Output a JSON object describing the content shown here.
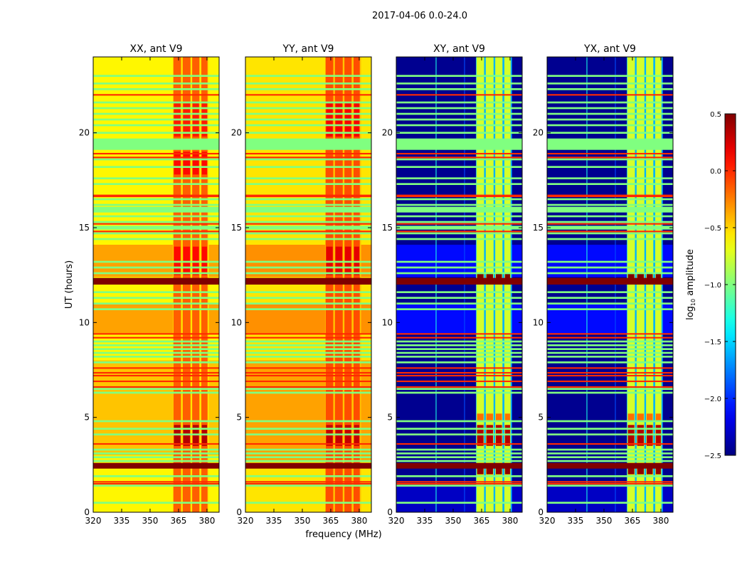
{
  "chart_data": {
    "type": "heatmap",
    "title": "2017-04-06 0.0-24.0",
    "xlabel": "frequency (MHz)",
    "ylabel": "UT (hours)",
    "xlim": [
      320,
      386.4
    ],
    "ylim": [
      0,
      24
    ],
    "xticks": [
      320,
      335,
      350,
      365,
      380
    ],
    "xtick_labels": [
      "320",
      "335",
      "350",
      "365",
      "380"
    ],
    "yticks": [
      0,
      5,
      10,
      15,
      20
    ],
    "ytick_labels": [
      "0",
      "5",
      "10",
      "15",
      "20"
    ],
    "colormap": "jet",
    "colorbar": {
      "label_main": "log",
      "label_sub": "10",
      "label_rest": " amplitude",
      "range": [
        -2.5,
        0.5
      ],
      "ticks": [
        0.5,
        0.0,
        -0.5,
        -1.0,
        -1.5,
        -2.0,
        -2.5
      ],
      "tick_labels": [
        "0.5",
        "0.0",
        "−0.5",
        "−1.0",
        "−1.5",
        "−2.0",
        "−2.5"
      ]
    },
    "band": {
      "range": [
        362,
        381
      ],
      "columns": [
        [
          362.3,
          366.3
        ],
        [
          367.2,
          371.3
        ],
        [
          372.2,
          376.0
        ],
        [
          377.0,
          380.3
        ]
      ]
    },
    "flag_lines": {
      "flagged": [
        23.0,
        22.6,
        22.3,
        21.6,
        21.3,
        21.0,
        20.7,
        20.4,
        20.0,
        18.6,
        18.2,
        17.6,
        17.3,
        16.5,
        16.2,
        15.9,
        15.6,
        15.3,
        15.0,
        14.7,
        14.4,
        13.2,
        12.9,
        12.6,
        11.6,
        11.3,
        11.0,
        10.7,
        9.0,
        8.8,
        8.6,
        8.4,
        8.2,
        7.9,
        6.5,
        6.3,
        4.8,
        4.4,
        4.1,
        3.3,
        3.1,
        2.9,
        2.7,
        1.9,
        1.4,
        0.5
      ],
      "flagged_value": -1.0,
      "flagged_blocks": [
        [
          19.1,
          19.7
        ],
        [
          15.8,
          16.1
        ],
        [
          14.9,
          15.1
        ]
      ],
      "hot": [
        22.0,
        18.9,
        18.7,
        16.7,
        16.65,
        15.2,
        14.8,
        9.4,
        9.2,
        7.6,
        7.35,
        7.2,
        6.9,
        6.6,
        3.6,
        1.6,
        1.5
      ],
      "hot_value": 0.0,
      "saturated_blocks": [
        [
          12.0,
          12.35
        ],
        [
          2.3,
          2.6
        ]
      ],
      "saturated_value": 0.5
    },
    "panels": [
      {
        "title": "XX, ant V9",
        "base": -0.6,
        "gap": -0.55,
        "band_value": -0.15,
        "regions": [
          {
            "t": [
              12.4,
              14.1
            ],
            "v": -0.35
          },
          {
            "t": [
              9.4,
              11.0
            ],
            "v": -0.35
          },
          {
            "t": [
              3.0,
              8.0
            ],
            "v": -0.45
          }
        ],
        "hot_spots": [
          {
            "t": [
              3.5,
              4.6
            ],
            "v": 0.35
          },
          {
            "t": [
              12.5,
              14.0
            ],
            "v": 0.1
          },
          {
            "t": [
              19.8,
              21.6
            ],
            "v": 0.05
          },
          {
            "t": [
              17.8,
              19.0
            ],
            "v": 0.1
          }
        ],
        "vlines": []
      },
      {
        "title": "YY, ant V9",
        "base": -0.55,
        "gap": -0.45,
        "band_value": -0.1,
        "regions": [
          {
            "t": [
              12.4,
              14.1
            ],
            "v": -0.3
          },
          {
            "t": [
              9.4,
              11.0
            ],
            "v": -0.3
          },
          {
            "t": [
              2.7,
              8.0
            ],
            "v": -0.35
          }
        ],
        "hot_spots": [
          {
            "t": [
              3.5,
              4.6
            ],
            "v": 0.3
          },
          {
            "t": [
              12.5,
              14.0
            ],
            "v": 0.2
          },
          {
            "t": [
              19.8,
              21.6
            ],
            "v": 0.15
          }
        ],
        "vlines": []
      },
      {
        "title": "XY, ant V9",
        "base": -2.45,
        "gap": -1.6,
        "band_value": -0.75,
        "regions": [
          {
            "t": [
              12.4,
              14.1
            ],
            "v": -2.1
          },
          {
            "t": [
              9.4,
              11.0
            ],
            "v": -2.1
          },
          {
            "t": [
              0,
              1.4
            ],
            "v": -2.3
          }
        ],
        "hot_spots": [
          {
            "t": [
              3.5,
              4.6
            ],
            "v": 0.35
          },
          {
            "t": [
              12.1,
              12.6
            ],
            "v": 0.5
          },
          {
            "t": [
              4.8,
              5.2
            ],
            "v": -0.2
          },
          {
            "t": [
              2.0,
              2.4
            ],
            "v": 0.45
          }
        ],
        "vlines": [
          {
            "f": 341,
            "v": -1.3
          },
          {
            "f": 356,
            "v": -1.9
          }
        ]
      },
      {
        "title": "YX, ant V9",
        "base": -2.45,
        "gap": -1.6,
        "band_value": -0.75,
        "regions": [
          {
            "t": [
              12.4,
              14.1
            ],
            "v": -2.1
          },
          {
            "t": [
              9.4,
              11.0
            ],
            "v": -2.1
          },
          {
            "t": [
              0,
              1.4
            ],
            "v": -2.3
          }
        ],
        "hot_spots": [
          {
            "t": [
              3.5,
              4.6
            ],
            "v": 0.35
          },
          {
            "t": [
              12.1,
              12.6
            ],
            "v": 0.5
          },
          {
            "t": [
              4.8,
              5.2
            ],
            "v": -0.2
          },
          {
            "t": [
              2.0,
              2.4
            ],
            "v": 0.45
          }
        ],
        "vlines": [
          {
            "f": 341,
            "v": -1.3
          },
          {
            "f": 356,
            "v": -1.9
          }
        ]
      }
    ]
  }
}
